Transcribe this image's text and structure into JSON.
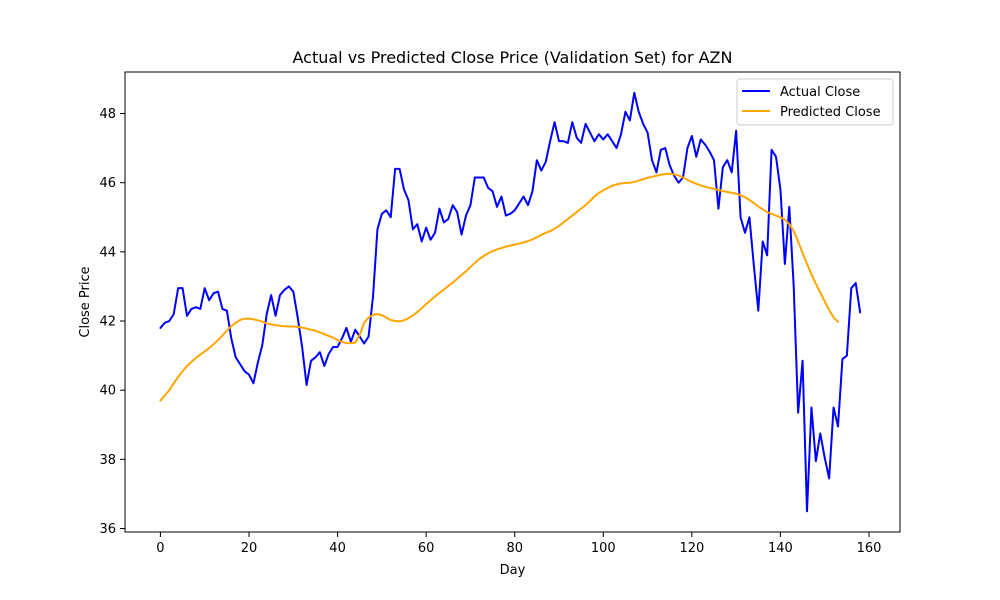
{
  "chart_data": {
    "type": "line",
    "title": "Actual vs Predicted Close Price (Validation Set) for AZN",
    "xlabel": "Day",
    "ylabel": "Close Price",
    "xlim": [
      -8.0,
      167.0
    ],
    "ylim": [
      35.9,
      49.2
    ],
    "xticks": [
      0,
      20,
      40,
      60,
      80,
      100,
      120,
      140,
      160
    ],
    "yticks": [
      36,
      38,
      40,
      42,
      44,
      46,
      48
    ],
    "grid": false,
    "legend_position": "top-right",
    "series": [
      {
        "name": "Actual Close",
        "color": "#0000ff",
        "values": [
          41.8,
          41.95,
          42.0,
          42.2,
          42.95,
          42.95,
          42.15,
          42.35,
          42.4,
          42.35,
          42.95,
          42.6,
          42.8,
          42.85,
          42.35,
          42.3,
          41.5,
          40.95,
          40.75,
          40.55,
          40.45,
          40.2,
          40.8,
          41.3,
          42.2,
          42.75,
          42.15,
          42.75,
          42.9,
          43.0,
          42.85,
          42.1,
          41.25,
          40.15,
          40.85,
          40.95,
          41.1,
          40.7,
          41.05,
          41.25,
          41.25,
          41.5,
          41.8,
          41.4,
          41.75,
          41.55,
          41.35,
          41.55,
          42.7,
          44.65,
          45.1,
          45.2,
          45.0,
          46.4,
          46.4,
          45.8,
          45.5,
          44.65,
          44.8,
          44.3,
          44.7,
          44.35,
          44.55,
          45.25,
          44.85,
          44.95,
          45.35,
          45.15,
          44.5,
          45.05,
          45.35,
          46.15,
          46.15,
          46.15,
          45.85,
          45.75,
          45.3,
          45.6,
          45.05,
          45.1,
          45.2,
          45.4,
          45.6,
          45.35,
          45.75,
          46.65,
          46.35,
          46.6,
          47.2,
          47.75,
          47.2,
          47.2,
          47.15,
          47.75,
          47.3,
          47.15,
          47.7,
          47.45,
          47.2,
          47.4,
          47.25,
          47.4,
          47.2,
          47.0,
          47.4,
          48.05,
          47.8,
          48.6,
          48.05,
          47.7,
          47.45,
          46.65,
          46.3,
          46.95,
          47.0,
          46.5,
          46.2,
          46.0,
          46.15,
          47.0,
          47.35,
          46.75,
          47.25,
          47.1,
          46.9,
          46.65,
          45.25,
          46.45,
          46.65,
          46.3,
          47.5,
          45.0,
          44.55,
          45.0,
          43.6,
          42.3,
          44.3,
          43.9,
          46.95,
          46.75,
          45.8,
          43.65,
          45.3,
          43.0,
          39.35,
          40.85,
          36.5,
          39.5,
          37.95,
          38.75,
          38.05,
          37.45,
          39.5,
          38.95,
          40.9,
          41.0,
          42.95,
          43.1,
          42.25
        ]
      },
      {
        "name": "Predicted Close",
        "color": "#ffa500",
        "values": [
          39.7,
          39.85,
          40.0,
          40.2,
          40.38,
          40.55,
          40.7,
          40.82,
          40.93,
          41.03,
          41.12,
          41.22,
          41.33,
          41.45,
          41.58,
          41.72,
          41.85,
          41.95,
          42.03,
          42.07,
          42.07,
          42.05,
          42.02,
          41.98,
          41.93,
          41.9,
          41.88,
          41.86,
          41.85,
          41.84,
          41.84,
          41.83,
          41.81,
          41.78,
          41.75,
          41.72,
          41.67,
          41.62,
          41.57,
          41.52,
          41.45,
          41.4,
          41.36,
          41.36,
          41.38,
          41.6,
          41.95,
          42.1,
          42.18,
          42.2,
          42.17,
          42.1,
          42.03,
          42.0,
          41.99,
          42.02,
          42.08,
          42.16,
          42.26,
          42.37,
          42.49,
          42.6,
          42.71,
          42.81,
          42.91,
          43.01,
          43.11,
          43.22,
          43.33,
          43.44,
          43.56,
          43.68,
          43.79,
          43.88,
          43.96,
          44.02,
          44.07,
          44.11,
          44.15,
          44.18,
          44.21,
          44.24,
          44.27,
          44.31,
          44.36,
          44.42,
          44.49,
          44.55,
          44.6,
          44.67,
          44.75,
          44.85,
          44.95,
          45.05,
          45.15,
          45.25,
          45.35,
          45.47,
          45.6,
          45.7,
          45.78,
          45.85,
          45.91,
          45.95,
          45.98,
          45.99,
          46.0,
          46.02,
          46.06,
          46.1,
          46.14,
          46.17,
          46.2,
          46.23,
          46.25,
          46.26,
          46.24,
          46.21,
          46.15,
          46.08,
          46.02,
          45.97,
          45.92,
          45.88,
          45.85,
          45.82,
          45.79,
          45.76,
          45.73,
          45.71,
          45.68,
          45.64,
          45.58,
          45.5,
          45.41,
          45.31,
          45.23,
          45.15,
          45.1,
          45.05,
          45.0,
          44.93,
          44.8,
          44.6,
          44.3,
          43.97,
          43.65,
          43.35,
          43.08,
          42.82,
          42.57,
          42.32,
          42.1,
          41.98
        ]
      }
    ]
  }
}
